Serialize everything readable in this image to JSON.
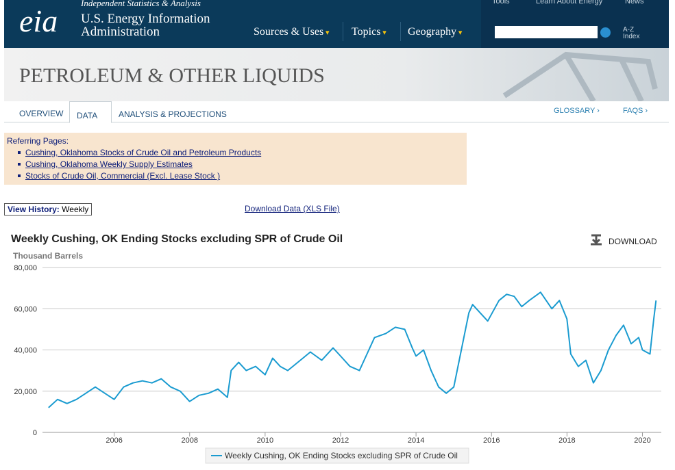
{
  "header": {
    "tagline": "Independent Statistics & Analysis",
    "logo": "eia",
    "org_line1": "U.S. Energy Information",
    "org_line2": "Administration",
    "top_links": [
      "Tools",
      "Learn About Energy",
      "News"
    ],
    "nav": [
      "Sources & Uses",
      "Topics",
      "Geography"
    ],
    "az": "A-Z",
    "index": "Index"
  },
  "banner": {
    "title": "PETROLEUM & OTHER LIQUIDS"
  },
  "tabs": {
    "left": [
      "OVERVIEW",
      "DATA",
      "ANALYSIS & PROJECTIONS"
    ],
    "right": [
      "GLOSSARY ›",
      "FAQS ›"
    ]
  },
  "referring": {
    "heading": "Referring Pages:",
    "links": [
      "Cushing, Oklahoma Stocks of Crude Oil and Petroleum Products",
      "Cushing, Oklahoma Weekly Supply Estimates",
      "Stocks of Crude Oil, Commercial (Excl. Lease Stock )"
    ]
  },
  "view_history": {
    "label": "View History:",
    "value": "Weekly"
  },
  "download_data": "Download Data (XLS File)",
  "download": "DOWNLOAD",
  "chart_data": {
    "type": "line",
    "title": "Weekly Cushing, OK Ending Stocks excluding SPR of Crude Oil",
    "y_axis_label": "Thousand Barrels",
    "x": [
      2004.26,
      2004.5,
      2004.75,
      2005.0,
      2005.25,
      2005.5,
      2005.75,
      2006.0,
      2006.25,
      2006.5,
      2006.75,
      2007.0,
      2007.25,
      2007.5,
      2007.75,
      2008.0,
      2008.25,
      2008.5,
      2008.75,
      2009.0,
      2009.1,
      2009.3,
      2009.5,
      2009.75,
      2010.0,
      2010.2,
      2010.4,
      2010.6,
      2010.8,
      2011.0,
      2011.2,
      2011.5,
      2011.8,
      2012.0,
      2012.25,
      2012.5,
      2012.7,
      2012.9,
      2013.2,
      2013.45,
      2013.7,
      2013.9,
      2014.0,
      2014.2,
      2014.4,
      2014.6,
      2014.8,
      2015.0,
      2015.2,
      2015.4,
      2015.5,
      2015.7,
      2015.9,
      2016.2,
      2016.4,
      2016.6,
      2016.8,
      2017.0,
      2017.3,
      2017.6,
      2017.8,
      2018.0,
      2018.1,
      2018.3,
      2018.5,
      2018.7,
      2018.9,
      2019.1,
      2019.3,
      2019.5,
      2019.7,
      2019.9,
      2020.0,
      2020.2,
      2020.3,
      2020.36
    ],
    "series": [
      {
        "name": "Weekly Cushing, OK Ending Stocks excluding SPR of Crude Oil",
        "color": "#1a9bd0",
        "values": [
          12000,
          16000,
          14000,
          16000,
          19000,
          22000,
          19000,
          16000,
          22000,
          24000,
          25000,
          24000,
          26000,
          22000,
          20000,
          15000,
          18000,
          19000,
          21000,
          17000,
          30000,
          34000,
          30000,
          32000,
          28000,
          36000,
          32000,
          30000,
          33000,
          36000,
          39000,
          35000,
          41000,
          37000,
          32000,
          30000,
          38000,
          46000,
          48000,
          51000,
          50000,
          41000,
          37000,
          40000,
          30000,
          22000,
          19000,
          22000,
          40000,
          58000,
          62000,
          58000,
          54000,
          64000,
          67000,
          66000,
          61000,
          64000,
          68000,
          60000,
          64000,
          55000,
          38000,
          32000,
          35000,
          24000,
          30000,
          40000,
          47000,
          52000,
          43000,
          46000,
          40000,
          38000,
          55000,
          64000
        ]
      }
    ],
    "xlim": [
      2004.1,
      2020.5
    ],
    "xticks": [
      2006,
      2008,
      2010,
      2012,
      2014,
      2016,
      2018,
      2020
    ],
    "ylim": [
      0,
      80000
    ],
    "yticks": [
      0,
      {
        "value": 20000,
        "label": "20,000"
      },
      {
        "value": 40000,
        "label": "40,000"
      },
      {
        "value": 60000,
        "label": "60,000"
      },
      {
        "value": 80000,
        "label": "80,000"
      }
    ],
    "grid": true
  }
}
